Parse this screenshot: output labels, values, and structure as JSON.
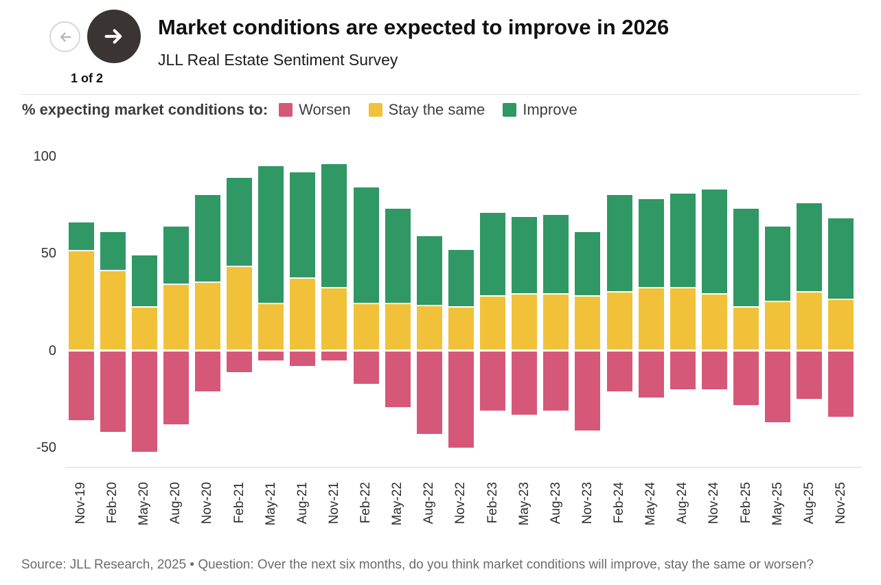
{
  "header": {
    "pagination": "1 of 2",
    "title": "Market conditions are expected to improve in 2026",
    "subtitle": "JLL Real Estate Sentiment Survey"
  },
  "legend": {
    "prefix": "% expecting market conditions to:",
    "items": [
      {
        "label": "Worsen",
        "color": "#d65878"
      },
      {
        "label": "Stay the same",
        "color": "#f2c13a"
      },
      {
        "label": "Improve",
        "color": "#2f9864"
      }
    ]
  },
  "chart_data": {
    "type": "bar",
    "stacked": true,
    "title": "Market conditions are expected to improve in 2026",
    "subtitle": "JLL Real Estate Sentiment Survey",
    "xlabel": "",
    "ylabel": "% expecting market conditions to",
    "grid": false,
    "legend_position": "top",
    "yticks": [
      100,
      50,
      0,
      -50
    ],
    "ylim": [
      -60,
      105
    ],
    "categories": [
      "Nov-19",
      "Feb-20",
      "May-20",
      "Aug-20",
      "Nov-20",
      "Feb-21",
      "May-21",
      "Aug-21",
      "Nov-21",
      "Feb-22",
      "May-22",
      "Aug-22",
      "Nov-22",
      "Feb-23",
      "May-23",
      "Aug-23",
      "Nov-23",
      "Feb-24",
      "May-24",
      "Aug-24",
      "Nov-24",
      "Feb-25",
      "May-25",
      "Aug-25",
      "Nov-25"
    ],
    "series": [
      {
        "name": "Worsen",
        "color": "#d65878",
        "values": [
          -36,
          -42,
          -52,
          -38,
          -21,
          -11,
          -5,
          -8,
          -5,
          -17,
          -29,
          -43,
          -50,
          -31,
          -33,
          -31,
          -41,
          -21,
          -24,
          -20,
          -20,
          -28,
          -37,
          -25,
          -34
        ]
      },
      {
        "name": "Stay the same",
        "color": "#f2c13a",
        "values": [
          51,
          41,
          22,
          34,
          35,
          43,
          24,
          37,
          32,
          24,
          24,
          23,
          22,
          28,
          29,
          29,
          28,
          30,
          32,
          32,
          29,
          22,
          25,
          30,
          26
        ]
      },
      {
        "name": "Improve",
        "color": "#2f9864",
        "values": [
          15,
          20,
          27,
          30,
          45,
          46,
          71,
          55,
          64,
          60,
          49,
          36,
          30,
          43,
          40,
          41,
          33,
          50,
          46,
          49,
          54,
          51,
          39,
          46,
          42
        ]
      }
    ]
  },
  "footer": {
    "text": "Source: JLL Research, 2025 • Question: Over the next six months, do you think market conditions will improve, stay the same or worsen?"
  }
}
